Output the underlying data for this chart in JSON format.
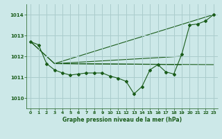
{
  "title": "Graphe pression niveau de la mer (hPa)",
  "bg_color": "#cce8e8",
  "grid_color": "#aacccc",
  "line_color": "#1a5c1a",
  "xlim": [
    -0.5,
    23.5
  ],
  "ylim": [
    1009.5,
    1014.5
  ],
  "yticks": [
    1010,
    1011,
    1012,
    1013,
    1014
  ],
  "xticks": [
    0,
    1,
    2,
    3,
    4,
    5,
    6,
    7,
    8,
    9,
    10,
    11,
    12,
    13,
    14,
    15,
    16,
    17,
    18,
    19,
    20,
    21,
    22,
    23
  ],
  "series_main_x": [
    0,
    1,
    2,
    3,
    4,
    5,
    6,
    7,
    8,
    9,
    10,
    11,
    12,
    13,
    14,
    15,
    16,
    17,
    18,
    19,
    20,
    21,
    22,
    23
  ],
  "series_main_y": [
    1012.7,
    1012.55,
    1011.65,
    1011.35,
    1011.2,
    1011.1,
    1011.15,
    1011.2,
    1011.2,
    1011.2,
    1011.05,
    1010.95,
    1010.8,
    1010.2,
    1010.55,
    1011.35,
    1011.6,
    1011.25,
    1011.15,
    1012.1,
    1013.5,
    1013.55,
    1013.7,
    1014.0
  ],
  "line1_x": [
    0,
    3,
    23
  ],
  "line1_y": [
    1012.7,
    1011.65,
    1014.0
  ],
  "line2_x": [
    0,
    3,
    23
  ],
  "line2_y": [
    1012.7,
    1011.65,
    1011.6
  ],
  "line3_x": [
    3,
    19
  ],
  "line3_y": [
    1011.65,
    1012.0
  ],
  "line4_x": [
    3,
    19
  ],
  "line4_y": [
    1011.65,
    1011.6
  ]
}
